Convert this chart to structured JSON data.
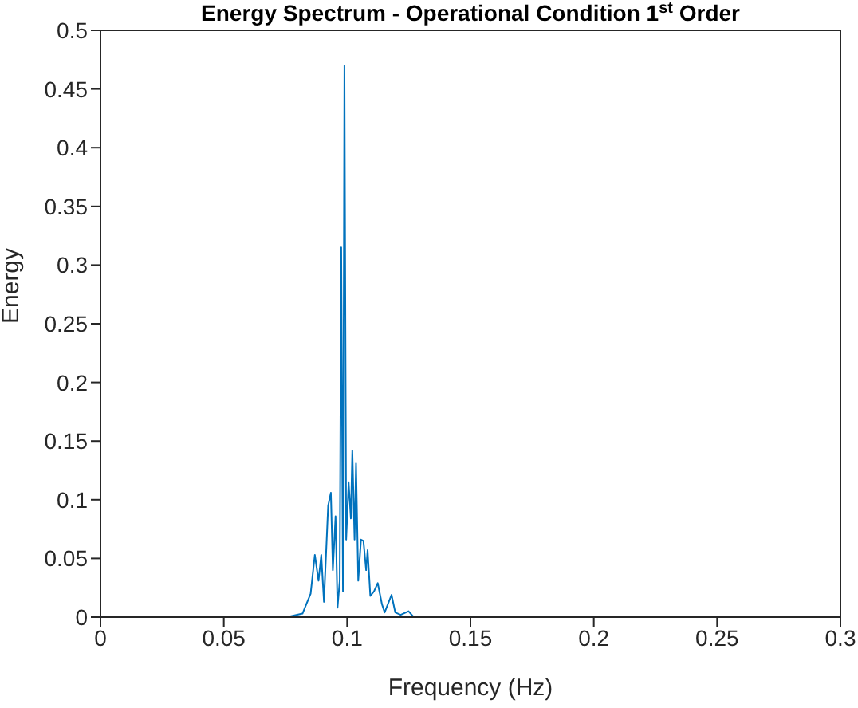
{
  "chart_data": {
    "type": "line",
    "title": "Energy Spectrum - Operational Condition 1$^{st}$ Order",
    "xlabel": "Frequency (Hz)",
    "ylabel": "Energy",
    "x": [
      0,
      0.05,
      0.0755,
      0.0819,
      0.0852,
      0.0869,
      0.0884,
      0.0895,
      0.0906,
      0.0923,
      0.0934,
      0.0942,
      0.0953,
      0.0961,
      0.097,
      0.0976,
      0.0983,
      0.0989,
      0.0996,
      0.1006,
      0.1015,
      0.1021,
      0.103,
      0.1036,
      0.1045,
      0.1056,
      0.1066,
      0.1077,
      0.1083,
      0.1094,
      0.1109,
      0.1124,
      0.1141,
      0.1152,
      0.118,
      0.1195,
      0.1217,
      0.1249,
      0.127,
      0.2,
      0.3
    ],
    "series": [
      {
        "color": "#0072bd",
        "values": [
          0,
          0,
          0,
          0.003,
          0.02,
          0.053,
          0.031,
          0.053,
          0.013,
          0.095,
          0.106,
          0.04,
          0.086,
          0.008,
          0.031,
          0.315,
          0.022,
          0.47,
          0.066,
          0.115,
          0.084,
          0.142,
          0.066,
          0.131,
          0.031,
          0.066,
          0.065,
          0.04,
          0.057,
          0.018,
          0.022,
          0.029,
          0.011,
          0.004,
          0.019,
          0.004,
          0.002,
          0.005,
          0,
          0,
          0
        ]
      }
    ],
    "xlim": [
      0,
      0.3
    ],
    "xticks": [
      0,
      0.05,
      0.1,
      0.15,
      0.2,
      0.25,
      0.3
    ],
    "ylim": [
      0,
      0.5
    ],
    "yticks": [
      0,
      0.05,
      0.1,
      0.15,
      0.2,
      0.25,
      0.3,
      0.35,
      0.4,
      0.45,
      0.5
    ],
    "marker": "none",
    "line_style": "solid"
  }
}
